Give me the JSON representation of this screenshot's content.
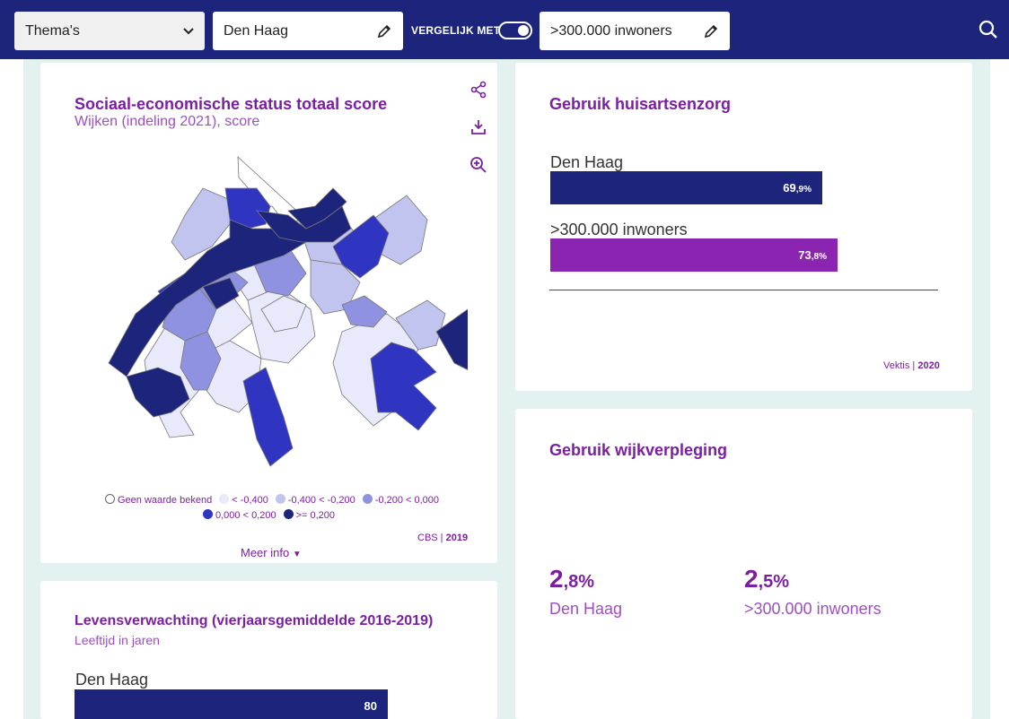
{
  "topbar": {
    "themas_label": "Thema's",
    "place_value": "Den Haag",
    "compare_label": "VERGELIJK MET",
    "compare_value": ">300.000 inwoners"
  },
  "colors": {
    "navy": "#1c247b",
    "purple": "#7b1fa2",
    "bar_compare": "#8b24b0",
    "bg": "#e3f1f0"
  },
  "map_card": {
    "title": "Sociaal-economische status totaal score",
    "subtitle": "Wijken (indeling 2021), score",
    "legend": [
      {
        "label": "Geen waarde bekend",
        "color": "#ffffff"
      },
      {
        "label": "< -0,400",
        "color": "#e8e9fa"
      },
      {
        "label": "-0,400 < -0,200",
        "color": "#c2c4f0"
      },
      {
        "label": "-0,200 < 0,000",
        "color": "#8f92e0"
      },
      {
        "label": "0,000 < 0,200",
        "color": "#2f35c0"
      },
      {
        "label": ">= 0,200",
        "color": "#1c247b"
      }
    ],
    "source": "CBS",
    "year": "2019",
    "more_info": "Meer info"
  },
  "huisarts_card": {
    "title": "Gebruik huisartsenzorg",
    "chart_data": {
      "type": "bar",
      "categories": [
        "Den Haag",
        ">300.000 inwoners"
      ],
      "values": [
        69.9,
        73.8
      ],
      "unit": "%",
      "labels": [
        {
          "main": "69",
          "dec": ",9%"
        },
        {
          "main": "73",
          "dec": ",8%"
        }
      ]
    },
    "source": "Vektis",
    "year": "2020"
  },
  "wijk_card": {
    "title": "Gebruik wijkverpleging",
    "items": [
      {
        "main": "2",
        "dec": ",8%",
        "label": "Den Haag"
      },
      {
        "main": "2",
        "dec": ",5%",
        "label": ">300.000 inwoners"
      }
    ]
  },
  "leven_card": {
    "title": "Levensverwachting (vierjaarsgemiddelde 2016-2019)",
    "subtitle": "Leeftijd in jaren",
    "bar_label": "Den Haag",
    "bar_value": "80"
  }
}
